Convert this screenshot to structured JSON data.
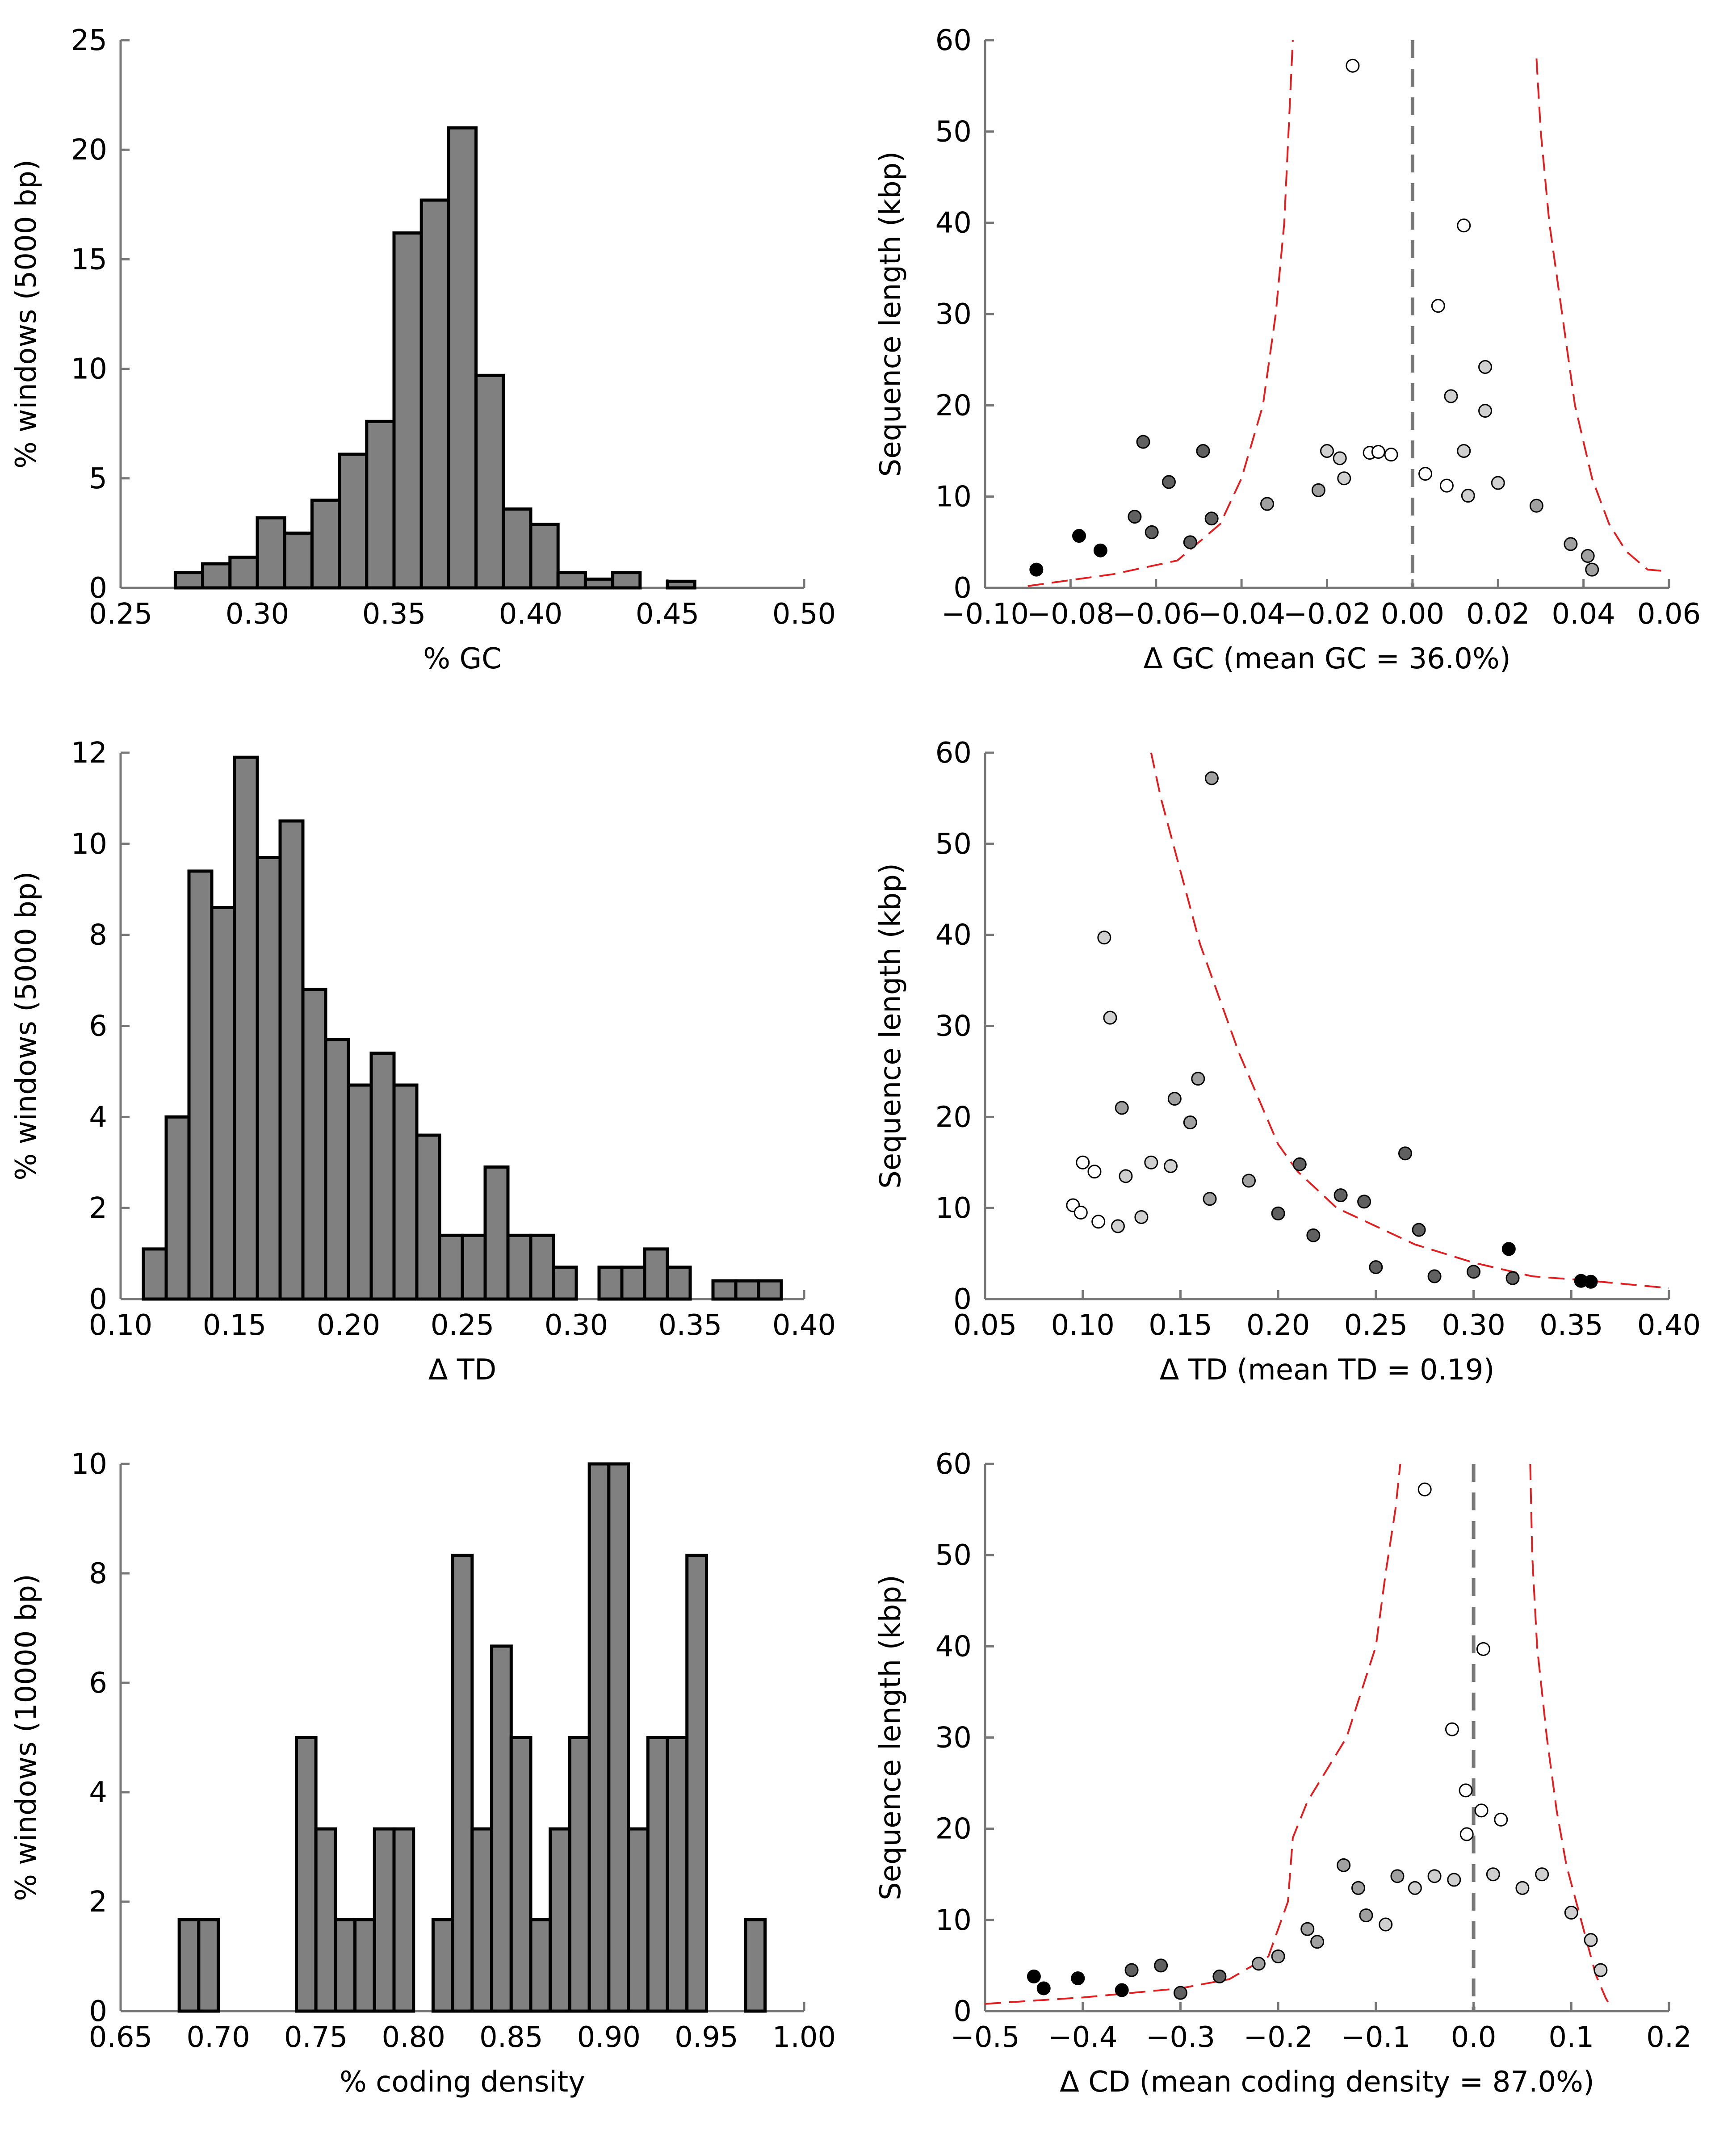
{
  "chart_data": [
    {
      "type": "bar",
      "xlabel": "% GC",
      "ylabel": "% windows (5000 bp)",
      "xlim": [
        0.25,
        0.5
      ],
      "ylim": [
        0,
        25
      ],
      "xticks": [
        0.25,
        0.3,
        0.35,
        0.4,
        0.45,
        0.5
      ],
      "xtick_labels": [
        "0.25",
        "0.30",
        "0.35",
        "0.40",
        "0.45",
        "0.50"
      ],
      "yticks": [
        0,
        5,
        10,
        15,
        20,
        25
      ],
      "ytick_labels": [
        "0",
        "5",
        "10",
        "15",
        "20",
        "25"
      ],
      "bin_edges": [
        0.27,
        0.28,
        0.29,
        0.3,
        0.31,
        0.32,
        0.33,
        0.34,
        0.35,
        0.36,
        0.37,
        0.38,
        0.39,
        0.4,
        0.41,
        0.42,
        0.43,
        0.44,
        0.45,
        0.46
      ],
      "values": [
        0.7,
        1.1,
        1.4,
        3.2,
        2.5,
        4.0,
        6.1,
        7.6,
        16.2,
        17.7,
        21.0,
        9.7,
        3.6,
        2.9,
        0.7,
        0.4,
        0.7,
        0,
        0.3
      ],
      "bar_color": "#808080",
      "grid": false
    },
    {
      "type": "scatter",
      "xlabel": "Δ GC (mean GC = 36.0%)",
      "ylabel": "Sequence length (kbp)",
      "xlim": [
        -0.1,
        0.06
      ],
      "ylim": [
        0,
        60
      ],
      "xticks": [
        -0.1,
        -0.08,
        -0.06,
        -0.04,
        -0.02,
        0.0,
        0.02,
        0.04,
        0.06
      ],
      "xtick_labels": [
        "−0.10",
        "−0.08",
        "−0.06",
        "−0.04",
        "−0.02",
        "0.00",
        "0.02",
        "0.04",
        "0.06"
      ],
      "yticks": [
        0,
        10,
        20,
        30,
        40,
        50,
        60
      ],
      "ytick_labels": [
        "0",
        "10",
        "20",
        "30",
        "40",
        "50",
        "60"
      ],
      "vline": 0.0,
      "cutoff_left": [
        [
          -0.09,
          0.2
        ],
        [
          -0.07,
          1.5
        ],
        [
          -0.055,
          3
        ],
        [
          -0.045,
          7
        ],
        [
          -0.04,
          12
        ],
        [
          -0.035,
          20
        ],
        [
          -0.032,
          30
        ],
        [
          -0.03,
          40
        ],
        [
          -0.029,
          50
        ],
        [
          -0.028,
          60
        ]
      ],
      "cutoff_right": [
        [
          0.029,
          58
        ],
        [
          0.03,
          50
        ],
        [
          0.032,
          40
        ],
        [
          0.035,
          30
        ],
        [
          0.038,
          20
        ],
        [
          0.042,
          12
        ],
        [
          0.046,
          7
        ],
        [
          0.05,
          4
        ],
        [
          0.055,
          2
        ],
        [
          0.06,
          1.8
        ]
      ],
      "points": [
        [
          -0.014,
          57.2,
          0
        ],
        [
          0.012,
          39.7,
          0
        ],
        [
          0.006,
          30.9,
          0
        ],
        [
          0.009,
          21.0,
          1
        ],
        [
          0.017,
          24.2,
          1
        ],
        [
          0.017,
          19.4,
          1
        ],
        [
          -0.063,
          16.0,
          3
        ],
        [
          -0.049,
          15.0,
          3
        ],
        [
          -0.057,
          11.6,
          3
        ],
        [
          -0.02,
          15.0,
          1
        ],
        [
          -0.017,
          14.2,
          1
        ],
        [
          -0.01,
          14.8,
          0
        ],
        [
          -0.008,
          14.9,
          0
        ],
        [
          -0.005,
          14.6,
          0
        ],
        [
          0.012,
          15.0,
          1
        ],
        [
          -0.088,
          2.0,
          4
        ],
        [
          -0.078,
          5.7,
          4
        ],
        [
          -0.073,
          4.1,
          4
        ],
        [
          -0.065,
          7.8,
          3
        ],
        [
          -0.061,
          6.1,
          3
        ],
        [
          -0.052,
          5.0,
          3
        ],
        [
          -0.047,
          7.6,
          3
        ],
        [
          -0.034,
          9.2,
          2
        ],
        [
          -0.022,
          10.7,
          2
        ],
        [
          -0.016,
          12.0,
          1
        ],
        [
          0.003,
          12.5,
          0
        ],
        [
          0.008,
          11.2,
          0
        ],
        [
          0.013,
          10.1,
          1
        ],
        [
          0.02,
          11.5,
          1
        ],
        [
          0.029,
          9.0,
          2
        ],
        [
          0.037,
          4.8,
          2
        ],
        [
          0.042,
          2.0,
          2
        ],
        [
          0.041,
          3.5,
          2
        ]
      ],
      "point_colors": [
        "#ffffff",
        "#d0d0d0",
        "#a0a0a0",
        "#606060",
        "#000000"
      ],
      "grid": false
    },
    {
      "type": "bar",
      "xlabel": "Δ TD",
      "ylabel": "% windows (5000 bp)",
      "xlim": [
        0.1,
        0.4
      ],
      "ylim": [
        0,
        12
      ],
      "xticks": [
        0.1,
        0.15,
        0.2,
        0.25,
        0.3,
        0.35,
        0.4
      ],
      "xtick_labels": [
        "0.10",
        "0.15",
        "0.20",
        "0.25",
        "0.30",
        "0.35",
        "0.40"
      ],
      "yticks": [
        0,
        2,
        4,
        6,
        8,
        10,
        12
      ],
      "ytick_labels": [
        "0",
        "2",
        "4",
        "6",
        "8",
        "10",
        "12"
      ],
      "bin_edges": [
        0.11,
        0.12,
        0.13,
        0.14,
        0.15,
        0.16,
        0.17,
        0.18,
        0.19,
        0.2,
        0.21,
        0.22,
        0.23,
        0.24,
        0.25,
        0.26,
        0.27,
        0.28,
        0.29,
        0.3,
        0.31,
        0.32,
        0.33,
        0.34,
        0.35,
        0.36,
        0.37,
        0.38,
        0.39
      ],
      "values": [
        1.1,
        4.0,
        9.4,
        8.6,
        11.9,
        9.7,
        10.5,
        6.8,
        5.7,
        4.7,
        5.4,
        4.7,
        3.6,
        1.4,
        1.4,
        2.9,
        1.4,
        1.4,
        0.7,
        0,
        0.7,
        0.7,
        1.1,
        0.7,
        0,
        0.4,
        0.4,
        0.4
      ],
      "bar_color": "#808080",
      "grid": false
    },
    {
      "type": "scatter",
      "xlabel": "Δ TD (mean TD = 0.19)",
      "ylabel": "Sequence length (kbp)",
      "xlim": [
        0.05,
        0.4
      ],
      "ylim": [
        0,
        60
      ],
      "xticks": [
        0.05,
        0.1,
        0.15,
        0.2,
        0.25,
        0.3,
        0.35,
        0.4
      ],
      "xtick_labels": [
        "0.05",
        "0.10",
        "0.15",
        "0.20",
        "0.25",
        "0.30",
        "0.35",
        "0.40"
      ],
      "yticks": [
        0,
        10,
        20,
        30,
        40,
        50,
        60
      ],
      "ytick_labels": [
        "0",
        "10",
        "20",
        "30",
        "40",
        "50",
        "60"
      ],
      "cutoff_right": [
        [
          0.135,
          60
        ],
        [
          0.14,
          55
        ],
        [
          0.15,
          47
        ],
        [
          0.16,
          39
        ],
        [
          0.17,
          33
        ],
        [
          0.18,
          27
        ],
        [
          0.19,
          22
        ],
        [
          0.2,
          17
        ],
        [
          0.21,
          14
        ],
        [
          0.23,
          10
        ],
        [
          0.25,
          8
        ],
        [
          0.27,
          6
        ],
        [
          0.3,
          4
        ],
        [
          0.33,
          2.5
        ],
        [
          0.36,
          2
        ],
        [
          0.4,
          1.2
        ]
      ],
      "points": [
        [
          0.166,
          57.2,
          2
        ],
        [
          0.111,
          39.7,
          1
        ],
        [
          0.114,
          30.9,
          1
        ],
        [
          0.12,
          21.0,
          2
        ],
        [
          0.147,
          22.0,
          2
        ],
        [
          0.159,
          24.2,
          2
        ],
        [
          0.155,
          19.4,
          2
        ],
        [
          0.265,
          16.0,
          3
        ],
        [
          0.211,
          14.8,
          3
        ],
        [
          0.232,
          11.4,
          3
        ],
        [
          0.106,
          14.0,
          0
        ],
        [
          0.1,
          15.0,
          0
        ],
        [
          0.135,
          15.0,
          1
        ],
        [
          0.145,
          14.6,
          1
        ],
        [
          0.122,
          13.5,
          1
        ],
        [
          0.095,
          10.3,
          0
        ],
        [
          0.099,
          9.5,
          0
        ],
        [
          0.108,
          8.5,
          0
        ],
        [
          0.118,
          8.0,
          1
        ],
        [
          0.13,
          9.0,
          1
        ],
        [
          0.165,
          11.0,
          2
        ],
        [
          0.185,
          13.0,
          2
        ],
        [
          0.2,
          9.4,
          3
        ],
        [
          0.218,
          7.0,
          3
        ],
        [
          0.244,
          10.7,
          3
        ],
        [
          0.272,
          7.6,
          3
        ],
        [
          0.318,
          5.5,
          4
        ],
        [
          0.355,
          2.0,
          4
        ],
        [
          0.36,
          1.9,
          4
        ],
        [
          0.3,
          3.0,
          3
        ],
        [
          0.28,
          2.5,
          3
        ],
        [
          0.32,
          2.3,
          3
        ],
        [
          0.25,
          3.5,
          3
        ]
      ],
      "point_colors": [
        "#ffffff",
        "#d0d0d0",
        "#a0a0a0",
        "#606060",
        "#000000"
      ],
      "grid": false
    },
    {
      "type": "bar",
      "xlabel": "% coding density",
      "ylabel": "% windows (10000 bp)",
      "xlim": [
        0.65,
        1.0
      ],
      "ylim": [
        0,
        10
      ],
      "xticks": [
        0.65,
        0.7,
        0.75,
        0.8,
        0.85,
        0.9,
        0.95,
        1.0
      ],
      "xtick_labels": [
        "0.65",
        "0.70",
        "0.75",
        "0.80",
        "0.85",
        "0.90",
        "0.95",
        "1.00"
      ],
      "yticks": [
        0,
        2,
        4,
        6,
        8,
        10
      ],
      "ytick_labels": [
        "0",
        "2",
        "4",
        "6",
        "8",
        "10"
      ],
      "bin_edges": [
        0.68,
        0.69,
        0.7,
        0.71,
        0.72,
        0.73,
        0.74,
        0.75,
        0.76,
        0.77,
        0.78,
        0.79,
        0.8,
        0.81,
        0.82,
        0.83,
        0.84,
        0.85,
        0.86,
        0.87,
        0.88,
        0.89,
        0.9,
        0.91,
        0.92,
        0.93,
        0.94,
        0.95,
        0.96,
        0.97,
        0.98
      ],
      "values": [
        1.67,
        1.67,
        0,
        0,
        0,
        0,
        5.0,
        3.33,
        1.67,
        1.67,
        3.33,
        3.33,
        0,
        1.67,
        8.33,
        3.33,
        6.67,
        5.0,
        1.67,
        3.33,
        5.0,
        10.0,
        10.0,
        3.33,
        5.0,
        5.0,
        8.33,
        0,
        0,
        1.67
      ],
      "bar_color": "#808080",
      "grid": false
    },
    {
      "type": "scatter",
      "xlabel": "Δ CD (mean coding density = 87.0%)",
      "ylabel": "Sequence length (kbp)",
      "xlim": [
        -0.5,
        0.2
      ],
      "ylim": [
        0,
        60
      ],
      "xticks": [
        -0.5,
        -0.4,
        -0.3,
        -0.2,
        -0.1,
        0.0,
        0.1,
        0.2
      ],
      "xtick_labels": [
        "−0.5",
        "−0.4",
        "−0.3",
        "−0.2",
        "−0.1",
        "0.0",
        "0.1",
        "0.2"
      ],
      "yticks": [
        0,
        10,
        20,
        30,
        40,
        50,
        60
      ],
      "ytick_labels": [
        "0",
        "10",
        "20",
        "30",
        "40",
        "50",
        "60"
      ],
      "vline": 0.0,
      "cutoff_left": [
        [
          -0.5,
          0.8
        ],
        [
          -0.4,
          1.5
        ],
        [
          -0.3,
          2.5
        ],
        [
          -0.25,
          3.5
        ],
        [
          -0.21,
          6
        ],
        [
          -0.19,
          12
        ],
        [
          -0.185,
          19
        ],
        [
          -0.17,
          23
        ],
        [
          -0.13,
          30
        ],
        [
          -0.1,
          40
        ],
        [
          -0.09,
          48
        ],
        [
          -0.08,
          55
        ],
        [
          -0.075,
          60
        ]
      ],
      "cutoff_right": [
        [
          0.058,
          60
        ],
        [
          0.06,
          50
        ],
        [
          0.065,
          40
        ],
        [
          0.075,
          30
        ],
        [
          0.085,
          22
        ],
        [
          0.095,
          16
        ],
        [
          0.105,
          12
        ],
        [
          0.115,
          8
        ],
        [
          0.125,
          4
        ],
        [
          0.135,
          1.5
        ],
        [
          0.14,
          0.5
        ]
      ],
      "points": [
        [
          -0.05,
          57.2,
          0
        ],
        [
          0.01,
          39.7,
          0
        ],
        [
          -0.022,
          30.9,
          0
        ],
        [
          -0.008,
          24.2,
          0
        ],
        [
          0.008,
          22.0,
          0
        ],
        [
          0.028,
          21.0,
          0
        ],
        [
          -0.007,
          19.4,
          0
        ],
        [
          -0.133,
          16.0,
          2
        ],
        [
          -0.118,
          13.5,
          2
        ],
        [
          -0.078,
          14.8,
          2
        ],
        [
          -0.06,
          13.5,
          1
        ],
        [
          -0.04,
          14.8,
          1
        ],
        [
          -0.02,
          14.4,
          1
        ],
        [
          0.02,
          15.0,
          1
        ],
        [
          0.07,
          15.0,
          1
        ],
        [
          -0.45,
          3.8,
          4
        ],
        [
          -0.44,
          2.5,
          4
        ],
        [
          -0.405,
          3.6,
          4
        ],
        [
          -0.36,
          2.3,
          4
        ],
        [
          -0.32,
          5.0,
          3
        ],
        [
          -0.35,
          4.5,
          3
        ],
        [
          -0.3,
          2.0,
          3
        ],
        [
          -0.26,
          3.8,
          3
        ],
        [
          -0.22,
          5.2,
          2
        ],
        [
          -0.2,
          6.0,
          2
        ],
        [
          -0.17,
          9.0,
          2
        ],
        [
          -0.16,
          7.6,
          2
        ],
        [
          -0.11,
          10.5,
          2
        ],
        [
          -0.09,
          9.5,
          1
        ],
        [
          0.05,
          13.5,
          1
        ],
        [
          0.1,
          10.8,
          1
        ],
        [
          0.12,
          7.8,
          1
        ],
        [
          0.13,
          4.5,
          1
        ]
      ],
      "point_colors": [
        "#ffffff",
        "#d0d0d0",
        "#a0a0a0",
        "#606060",
        "#000000"
      ],
      "grid": false
    }
  ]
}
